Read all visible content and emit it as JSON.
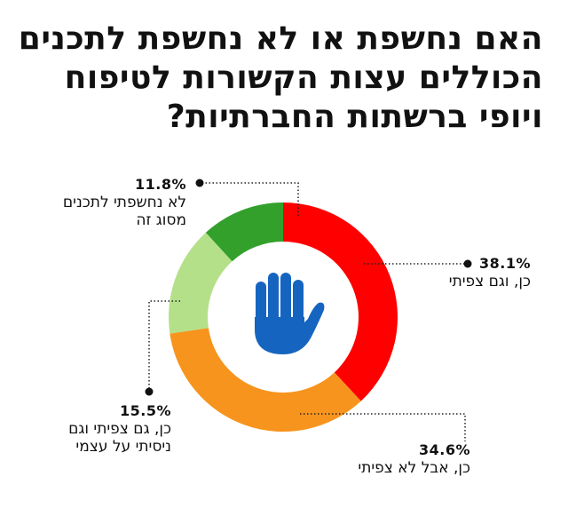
{
  "chart_data": {
    "type": "pie",
    "title_lines": [
      "האם נחשפת או לא נחשפת לתכנים",
      "הכוללים עצות הקשורות לטיפוח",
      "ויופי ברשתות החברתיות?"
    ],
    "slices": [
      {
        "value_label": "38.1%",
        "value": 38.1,
        "label_lines": [
          "כן, וגם צפיתי"
        ],
        "color": "#ff0000"
      },
      {
        "value_label": "34.6%",
        "value": 34.6,
        "label_lines": [
          "כן, אבל לא צפיתי"
        ],
        "color": "#f7941d"
      },
      {
        "value_label": "15.5%",
        "value": 15.5,
        "label_lines": [
          "כן, גם צפיתי וגם",
          "ניסיתי על עצמי"
        ],
        "color": "#b5e08a"
      },
      {
        "value_label": "11.8%",
        "value": 11.8,
        "label_lines": [
          "לא נחשפתי לתכנים",
          "מסוג זה"
        ],
        "color": "#33a02c"
      }
    ],
    "center_icon": "raised-hand-icon",
    "center_icon_color": "#1565c0",
    "legend": "none"
  }
}
